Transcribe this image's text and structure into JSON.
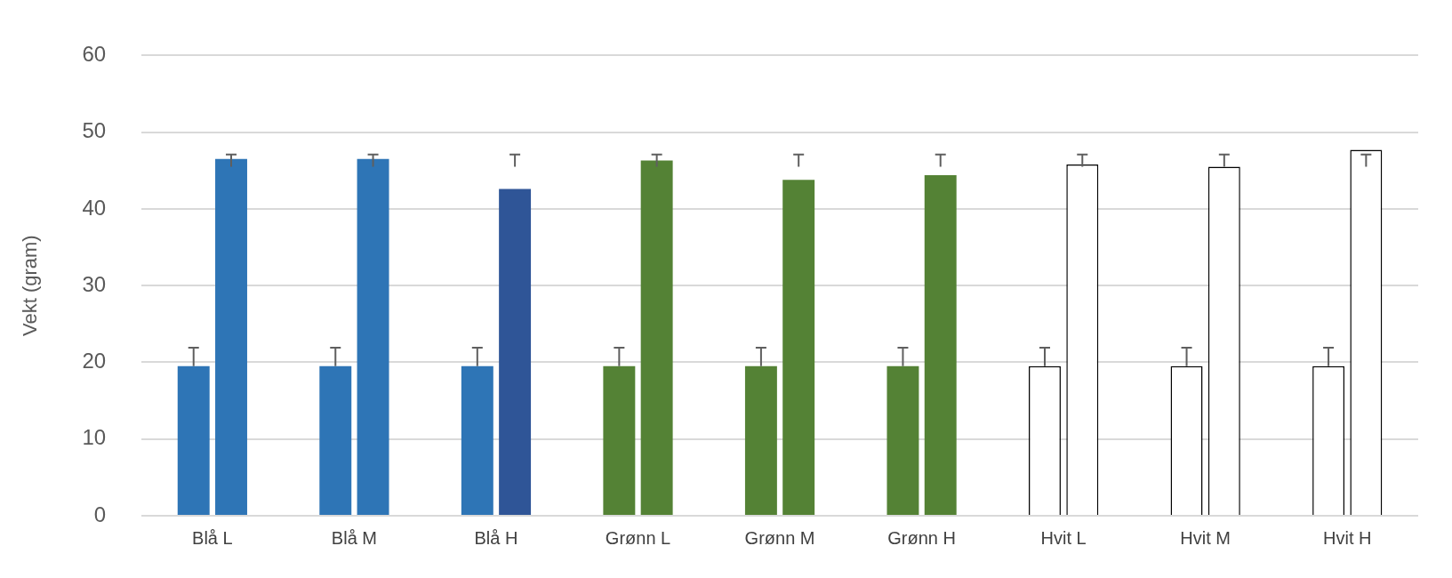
{
  "chart_data": {
    "type": "bar",
    "ylabel": "Vekt (gram)",
    "categories": [
      "Blå L",
      "Blå M",
      "Blå H",
      "Grønn L",
      "Grønn M",
      "Grønn H",
      "Hvit L",
      "Hvit M",
      "Hvit H"
    ],
    "series": [
      {
        "colors": [
          "#2e75b6",
          "#2e75b6",
          "#2e75b6",
          "#548235",
          "#548235",
          "#548235",
          "#ffffff",
          "#ffffff",
          "#ffffff"
        ],
        "values": [
          19.5,
          19.5,
          19.5,
          19.5,
          19.5,
          19.5,
          19.5,
          19.5,
          19.5
        ],
        "errors": [
          [
            19.5,
            21.9
          ],
          [
            19.5,
            21.9
          ],
          [
            19.5,
            21.9
          ],
          [
            19.5,
            21.9
          ],
          [
            19.5,
            21.9
          ],
          [
            19.5,
            21.9
          ],
          [
            19.5,
            21.9
          ],
          [
            19.5,
            21.9
          ],
          [
            19.5,
            21.9
          ]
        ]
      },
      {
        "colors": [
          "#2e75b6",
          "#2e75b6",
          "#2f5597",
          "#548235",
          "#548235",
          "#548235",
          "#ffffff",
          "#ffffff",
          "#ffffff"
        ],
        "values": [
          46.5,
          46.5,
          42.6,
          46.3,
          43.8,
          44.4,
          45.8,
          45.5,
          47.7
        ],
        "errors": [
          [
            45.5,
            47.1
          ],
          [
            45.5,
            47.1
          ],
          [
            45.5,
            47.1
          ],
          [
            45.5,
            47.1
          ],
          [
            45.5,
            47.1
          ],
          [
            45.5,
            47.1
          ],
          [
            45.5,
            47.1
          ],
          [
            45.5,
            47.1
          ],
          [
            45.5,
            47.1
          ]
        ]
      }
    ],
    "ylim": [
      0,
      60
    ],
    "yticks": [
      0,
      10,
      20,
      30,
      40,
      50,
      60
    ],
    "grid": "y",
    "legend": false
  }
}
